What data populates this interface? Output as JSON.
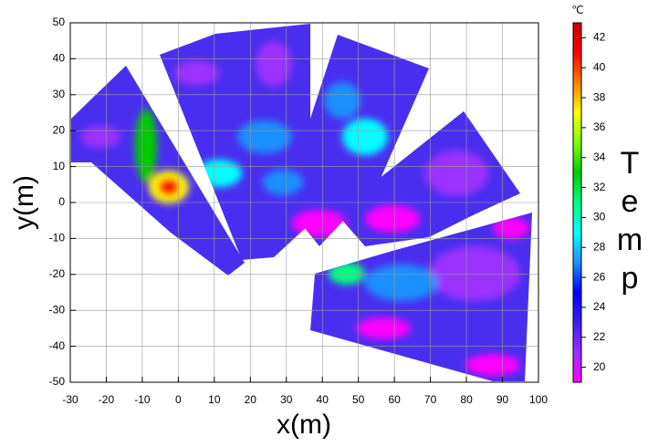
{
  "chart_data": {
    "type": "heatmap",
    "xlabel": "x(m)",
    "ylabel": "y(m)",
    "xlim": [
      -30,
      100
    ],
    "xticks": [
      -30,
      -20,
      -10,
      0,
      10,
      20,
      30,
      40,
      50,
      60,
      70,
      80,
      90,
      100
    ],
    "ylim": [
      -50,
      50
    ],
    "yticks": [
      -50,
      -40,
      -30,
      -20,
      -10,
      0,
      10,
      20,
      30,
      40,
      50
    ],
    "grid": true,
    "colorbar": {
      "label": "Temp",
      "unit": "℃",
      "clim": [
        19,
        43
      ],
      "ticks": [
        20,
        22,
        24,
        26,
        28,
        30,
        32,
        34,
        36,
        38,
        40,
        42
      ],
      "colormap": [
        "#ff00ff",
        "#9b30ff",
        "#3c1ef0",
        "#0000ff",
        "#1e90ff",
        "#00ffff",
        "#00ff80",
        "#00cc00",
        "#80ff00",
        "#ffff00",
        "#ff8000",
        "#ff0000",
        "#cc0000"
      ]
    }
  }
}
